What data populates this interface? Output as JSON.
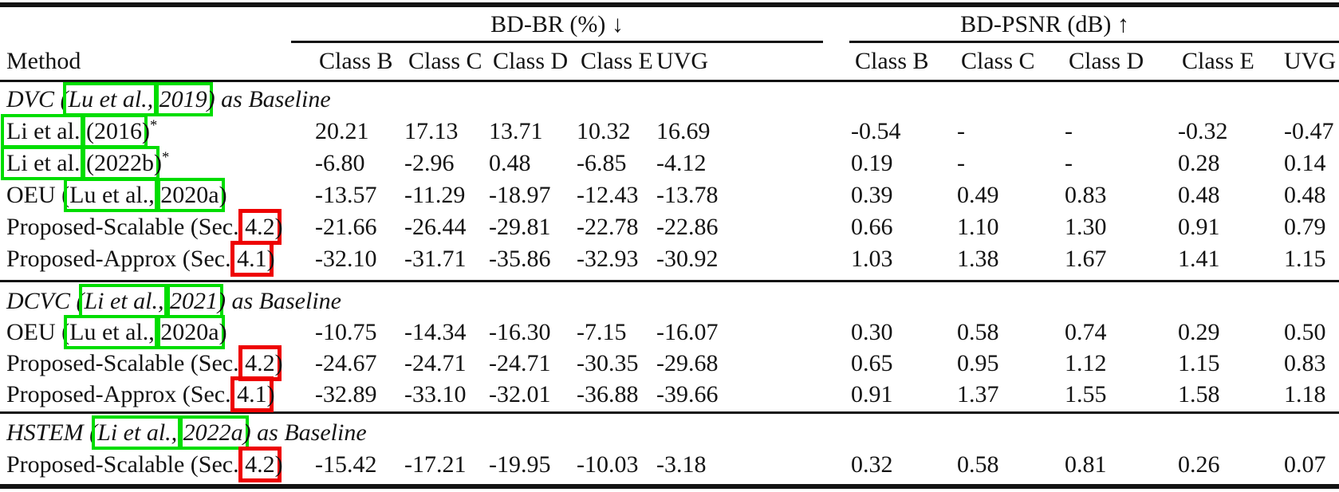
{
  "colors": {
    "citation_box": "#00DD00",
    "section_box": "#EE0000",
    "text": "#131313"
  },
  "table": {
    "group_headers": [
      {
        "label": "BD-BR (%) ↓"
      },
      {
        "label": "BD-PSNR (dB) ↑"
      }
    ],
    "method_header": "Method",
    "class_headers": [
      "Class B",
      "Class C",
      "Class D",
      "Class E",
      "UVG",
      "Class B",
      "Class C",
      "Class D",
      "Class E",
      "UVG"
    ],
    "sections": [
      {
        "header_segments": [
          {
            "t": "DVC ("
          },
          {
            "t": "Lu et al.,",
            "box": "green"
          },
          {
            "t": " "
          },
          {
            "t": "2019",
            "box": "green"
          },
          {
            "t": ") as Baseline"
          }
        ],
        "rows": [
          {
            "label_segments": [
              {
                "t": "Li et al.",
                "box": "green"
              },
              {
                "t": " "
              },
              {
                "t": "(2016",
                "box": "green"
              },
              {
                "t": ")"
              },
              {
                "t": "*",
                "sup": true
              }
            ],
            "bdbr": [
              "20.21",
              "17.13",
              "13.71",
              "10.32",
              "16.69"
            ],
            "bdpsnr": [
              "-0.54",
              "-",
              "-",
              "-0.32",
              "-0.47"
            ]
          },
          {
            "label_segments": [
              {
                "t": "Li et al.",
                "box": "green"
              },
              {
                "t": " "
              },
              {
                "t": "(2022b",
                "box": "green"
              },
              {
                "t": ")"
              },
              {
                "t": "*",
                "sup": true
              }
            ],
            "bdbr": [
              "-6.80",
              "-2.96",
              "0.48",
              "-6.85",
              "-4.12"
            ],
            "bdpsnr": [
              "0.19",
              "-",
              "-",
              "0.28",
              "0.14"
            ]
          },
          {
            "label_segments": [
              {
                "t": "OEU ("
              },
              {
                "t": "Lu et al.,",
                "box": "green"
              },
              {
                "t": " "
              },
              {
                "t": "2020a",
                "box": "green"
              },
              {
                "t": ")"
              }
            ],
            "bdbr": [
              "-13.57",
              "-11.29",
              "-18.97",
              "-12.43",
              "-13.78"
            ],
            "bdpsnr": [
              "0.39",
              "0.49",
              "0.83",
              "0.48",
              "0.48"
            ]
          },
          {
            "label_segments": [
              {
                "t": "Proposed-Scalable (Sec. "
              },
              {
                "t": "4.2",
                "box": "red"
              },
              {
                "t": ")"
              }
            ],
            "bdbr": [
              "-21.66",
              "-26.44",
              "-29.81",
              "-22.78",
              "-22.86"
            ],
            "bdpsnr": [
              "0.66",
              "1.10",
              "1.30",
              "0.91",
              "0.79"
            ]
          },
          {
            "label_segments": [
              {
                "t": "Proposed-Approx (Sec. "
              },
              {
                "t": "4.1",
                "box": "red"
              },
              {
                "t": ")"
              }
            ],
            "bdbr": [
              "-32.10",
              "-31.71",
              "-35.86",
              "-32.93",
              "-30.92"
            ],
            "bdpsnr": [
              "1.03",
              "1.38",
              "1.67",
              "1.41",
              "1.15"
            ]
          }
        ]
      },
      {
        "header_segments": [
          {
            "t": "DCVC ("
          },
          {
            "t": "Li et al.,",
            "box": "green"
          },
          {
            "t": " "
          },
          {
            "t": "2021",
            "box": "green"
          },
          {
            "t": ") as Baseline"
          }
        ],
        "rows": [
          {
            "label_segments": [
              {
                "t": "OEU ("
              },
              {
                "t": "Lu et al.,",
                "box": "green"
              },
              {
                "t": " "
              },
              {
                "t": "2020a",
                "box": "green"
              },
              {
                "t": ")"
              }
            ],
            "bdbr": [
              "-10.75",
              "-14.34",
              "-16.30",
              "-7.15",
              "-16.07"
            ],
            "bdpsnr": [
              "0.30",
              "0.58",
              "0.74",
              "0.29",
              "0.50"
            ]
          },
          {
            "label_segments": [
              {
                "t": "Proposed-Scalable (Sec. "
              },
              {
                "t": "4.2",
                "box": "red"
              },
              {
                "t": ")"
              }
            ],
            "bdbr": [
              "-24.67",
              "-24.71",
              "-24.71",
              "-30.35",
              "-29.68"
            ],
            "bdpsnr": [
              "0.65",
              "0.95",
              "1.12",
              "1.15",
              "0.83"
            ]
          },
          {
            "label_segments": [
              {
                "t": "Proposed-Approx (Sec. "
              },
              {
                "t": "4.1",
                "box": "red"
              },
              {
                "t": ")"
              }
            ],
            "bdbr": [
              "-32.89",
              "-33.10",
              "-32.01",
              "-36.88",
              "-39.66"
            ],
            "bdpsnr": [
              "0.91",
              "1.37",
              "1.55",
              "1.58",
              "1.18"
            ]
          }
        ]
      },
      {
        "header_segments": [
          {
            "t": "HSTEM ("
          },
          {
            "t": "Li et al.,",
            "box": "green"
          },
          {
            "t": " "
          },
          {
            "t": "2022a",
            "box": "green"
          },
          {
            "t": ") as Baseline"
          }
        ],
        "rows": [
          {
            "label_segments": [
              {
                "t": "Proposed-Scalable (Sec. "
              },
              {
                "t": "4.2",
                "box": "red"
              },
              {
                "t": ")"
              }
            ],
            "bdbr": [
              "-15.42",
              "-17.21",
              "-19.95",
              "-10.03",
              "-3.18"
            ],
            "bdpsnr": [
              "0.32",
              "0.58",
              "0.81",
              "0.26",
              "0.07"
            ]
          }
        ]
      }
    ]
  }
}
